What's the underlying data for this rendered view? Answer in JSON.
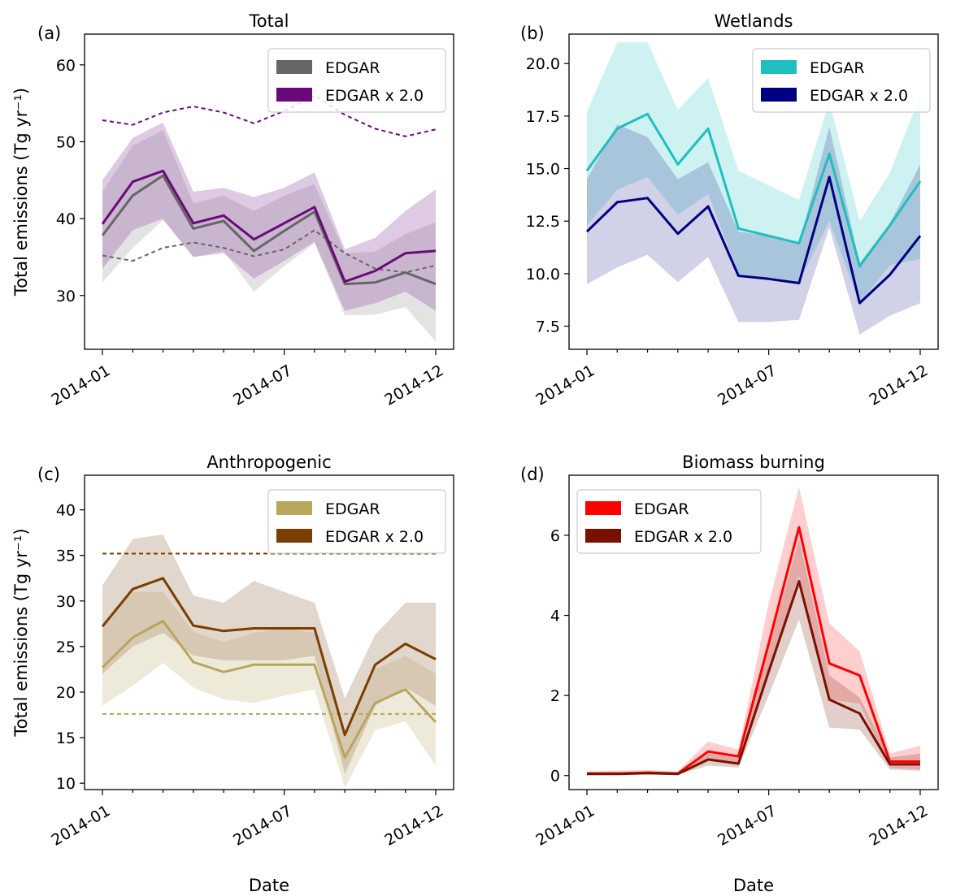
{
  "figure": {
    "shared_ylabel": "Total emissions (Tg yr⁻¹)",
    "shared_xlabel": "Date"
  },
  "chart_data": [
    {
      "id": "a",
      "type": "line",
      "panel_label": "(a)",
      "title": "Total",
      "ylabel": "Total emissions (Tg yr⁻¹)",
      "xlabel": "",
      "xticks": [
        "2014-01",
        "2014-07",
        "2014-12"
      ],
      "x": [
        "2014-01",
        "2014-02",
        "2014-03",
        "2014-04",
        "2014-05",
        "2014-06",
        "2014-07",
        "2014-08",
        "2014-09",
        "2014-10",
        "2014-11",
        "2014-12"
      ],
      "ylim": [
        23,
        64
      ],
      "yticks": [
        30,
        40,
        50,
        60
      ],
      "legend": "top-right",
      "series": [
        {
          "name": "EDGAR",
          "color": "#666666",
          "band_color": "#d9d9d9",
          "band_opacity": 0.75,
          "values": [
            37.8,
            43.0,
            45.6,
            38.7,
            39.7,
            35.8,
            38.4,
            40.9,
            31.5,
            31.7,
            33.0,
            31.5
          ],
          "lower": [
            31.7,
            36.2,
            39.8,
            35.0,
            35.8,
            30.5,
            33.8,
            36.8,
            27.4,
            27.5,
            28.5,
            24.0
          ],
          "upper": [
            43.5,
            49.5,
            51.5,
            42.0,
            43.0,
            41.0,
            43.0,
            44.5,
            35.5,
            35.7,
            38.0,
            39.5
          ]
        },
        {
          "name": "EDGAR x 2.0",
          "color": "#6a0a7a",
          "band_color": "#7a2d8a",
          "band_opacity": 0.25,
          "values": [
            39.3,
            44.8,
            46.2,
            39.4,
            40.4,
            37.3,
            39.4,
            41.5,
            31.8,
            33.2,
            35.5,
            35.8
          ],
          "lower": [
            33.5,
            38.5,
            40.0,
            35.0,
            35.5,
            32.2,
            34.5,
            37.0,
            28.0,
            29.0,
            30.5,
            28.0
          ],
          "upper": [
            45.0,
            50.5,
            52.5,
            43.5,
            44.0,
            42.8,
            44.0,
            46.0,
            36.0,
            37.5,
            41.0,
            43.8
          ]
        }
      ],
      "dashed": [
        {
          "color": "#666666",
          "values": [
            35.2,
            34.5,
            36.2,
            36.9,
            36.2,
            35.1,
            36.0,
            38.5,
            35.5,
            33.5,
            33.0,
            33.9
          ]
        },
        {
          "color": "#6a0a7a",
          "values": [
            52.8,
            52.2,
            53.8,
            54.6,
            53.8,
            52.4,
            54.0,
            56.0,
            53.5,
            51.7,
            50.7,
            51.6
          ]
        }
      ]
    },
    {
      "id": "b",
      "type": "line",
      "panel_label": "(b)",
      "title": "Wetlands",
      "ylabel": "",
      "xlabel": "",
      "xticks": [
        "2014-01",
        "2014-07",
        "2014-12"
      ],
      "x": [
        "2014-01",
        "2014-02",
        "2014-03",
        "2014-04",
        "2014-05",
        "2014-06",
        "2014-07",
        "2014-08",
        "2014-09",
        "2014-10",
        "2014-11",
        "2014-12"
      ],
      "ylim": [
        6.4,
        21.4
      ],
      "yticks": [
        7.5,
        10.0,
        12.5,
        15.0,
        17.5,
        20.0
      ],
      "legend": "top-right",
      "series": [
        {
          "name": "EDGAR",
          "color": "#1fbfbf",
          "band_color": "#1fbfbf",
          "band_opacity": 0.22,
          "values": [
            14.9,
            16.9,
            17.6,
            15.2,
            16.9,
            12.15,
            11.8,
            11.45,
            15.7,
            10.35,
            12.3,
            14.4
          ],
          "lower": [
            12.3,
            14.0,
            14.6,
            12.8,
            13.8,
            10.0,
            9.8,
            9.6,
            12.5,
            8.6,
            10.4,
            10.7
          ],
          "upper": [
            17.7,
            21.0,
            21.0,
            17.8,
            19.3,
            14.9,
            14.2,
            13.5,
            18.2,
            12.5,
            14.8,
            18.5
          ]
        },
        {
          "name": "EDGAR x 2.0",
          "color": "#000080",
          "band_color": "#1a1a8c",
          "band_opacity": 0.2,
          "values": [
            12.0,
            13.4,
            13.6,
            11.9,
            13.2,
            9.9,
            9.75,
            9.55,
            14.6,
            8.6,
            9.95,
            11.8
          ],
          "lower": [
            9.5,
            10.3,
            10.9,
            9.6,
            10.8,
            7.7,
            7.7,
            7.8,
            12.2,
            7.1,
            8.0,
            8.6
          ],
          "upper": [
            14.5,
            17.1,
            16.5,
            14.5,
            15.3,
            12.0,
            11.8,
            11.4,
            17.0,
            10.5,
            12.4,
            15.2
          ]
        }
      ],
      "dashed": []
    },
    {
      "id": "c",
      "type": "line",
      "panel_label": "(c)",
      "title": "Anthropogenic",
      "ylabel": "Total emissions (Tg yr⁻¹)",
      "xlabel": "Date",
      "xticks": [
        "2014-01",
        "2014-07",
        "2014-12"
      ],
      "x": [
        "2014-01",
        "2014-02",
        "2014-03",
        "2014-04",
        "2014-05",
        "2014-06",
        "2014-07",
        "2014-08",
        "2014-09",
        "2014-10",
        "2014-11",
        "2014-12"
      ],
      "ylim": [
        9.3,
        43.8
      ],
      "yticks": [
        10,
        15,
        20,
        25,
        30,
        35,
        40
      ],
      "legend": "top-right",
      "series": [
        {
          "name": "EDGAR",
          "color": "#b8a65b",
          "band_color": "#c2b27a",
          "band_opacity": 0.28,
          "values": [
            22.7,
            26.0,
            27.8,
            23.3,
            22.2,
            23.0,
            23.0,
            23.0,
            12.8,
            18.8,
            20.3,
            16.7
          ],
          "lower": [
            18.5,
            20.7,
            23.2,
            20.5,
            19.2,
            18.8,
            19.6,
            20.3,
            9.5,
            15.8,
            16.8,
            11.9
          ],
          "upper": [
            27.5,
            31.0,
            31.0,
            26.6,
            25.5,
            26.5,
            27.0,
            26.5,
            15.5,
            22.5,
            24.0,
            22.0
          ]
        },
        {
          "name": "EDGAR x 2.0",
          "color": "#7a3e00",
          "band_color": "#a07a5a",
          "band_opacity": 0.3,
          "values": [
            27.2,
            31.3,
            32.5,
            27.3,
            26.7,
            27.0,
            27.0,
            27.0,
            15.3,
            23.0,
            25.3,
            23.6
          ],
          "lower": [
            22.0,
            25.0,
            26.5,
            24.0,
            23.5,
            23.5,
            23.5,
            24.0,
            11.0,
            18.5,
            20.5,
            18.5
          ],
          "upper": [
            31.7,
            36.8,
            37.3,
            30.6,
            29.8,
            32.2,
            31.0,
            29.8,
            19.3,
            26.3,
            29.8,
            29.8
          ]
        }
      ],
      "dashed": [
        {
          "color": "#b8a65b",
          "values": [
            17.6,
            17.6,
            17.6,
            17.6,
            17.6,
            17.6,
            17.6,
            17.6,
            17.6,
            17.6,
            17.6,
            17.6
          ]
        },
        {
          "color": "#7a3e00",
          "values": [
            35.2,
            35.2,
            35.2,
            35.2,
            35.2,
            35.2,
            35.2,
            35.2,
            35.2,
            35.2,
            35.2,
            35.2
          ]
        }
      ]
    },
    {
      "id": "d",
      "type": "line",
      "panel_label": "(d)",
      "title": "Biomass burning",
      "ylabel": "",
      "xlabel": "Date",
      "xticks": [
        "2014-01",
        "2014-07",
        "2014-12"
      ],
      "x": [
        "2014-01",
        "2014-02",
        "2014-03",
        "2014-04",
        "2014-05",
        "2014-06",
        "2014-07",
        "2014-08",
        "2014-09",
        "2014-10",
        "2014-11",
        "2014-12"
      ],
      "ylim": [
        -0.35,
        7.5
      ],
      "yticks": [
        0,
        2,
        4,
        6
      ],
      "legend": "top-left",
      "series": [
        {
          "name": "EDGAR",
          "color": "#ff0000",
          "band_color": "#ff6666",
          "band_opacity": 0.32,
          "values": [
            0.05,
            0.05,
            0.07,
            0.05,
            0.6,
            0.48,
            3.3,
            6.2,
            2.8,
            2.5,
            0.35,
            0.35
          ],
          "lower": [
            0.02,
            0.03,
            0.04,
            0.02,
            0.4,
            0.3,
            2.6,
            5.0,
            1.9,
            1.8,
            0.2,
            0.15
          ],
          "upper": [
            0.1,
            0.12,
            0.14,
            0.1,
            0.85,
            0.65,
            4.3,
            7.2,
            3.8,
            3.1,
            0.55,
            0.75
          ]
        },
        {
          "name": "EDGAR x 2.0",
          "color": "#7a1000",
          "band_color": "#8a3a2a",
          "band_opacity": 0.25,
          "values": [
            0.04,
            0.04,
            0.06,
            0.04,
            0.4,
            0.3,
            2.6,
            4.85,
            1.9,
            1.55,
            0.28,
            0.28
          ],
          "lower": [
            0.02,
            0.02,
            0.03,
            0.02,
            0.25,
            0.2,
            2.0,
            3.9,
            1.2,
            1.15,
            0.15,
            0.12
          ],
          "upper": [
            0.08,
            0.08,
            0.1,
            0.07,
            0.55,
            0.45,
            3.2,
            5.9,
            2.5,
            1.95,
            0.45,
            0.55
          ]
        }
      ],
      "dashed": []
    }
  ]
}
